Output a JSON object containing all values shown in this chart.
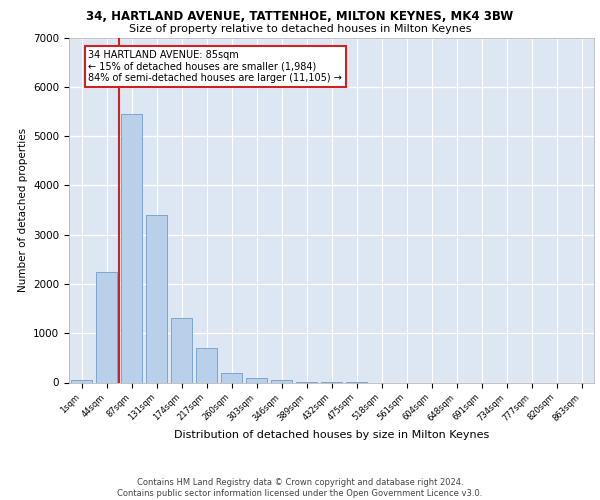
{
  "title_line1": "34, HARTLAND AVENUE, TATTENHOE, MILTON KEYNES, MK4 3BW",
  "title_line2": "Size of property relative to detached houses in Milton Keynes",
  "xlabel": "Distribution of detached houses by size in Milton Keynes",
  "ylabel": "Number of detached properties",
  "footer_line1": "Contains HM Land Registry data © Crown copyright and database right 2024.",
  "footer_line2": "Contains public sector information licensed under the Open Government Licence v3.0.",
  "annotation_line1": "34 HARTLAND AVENUE: 85sqm",
  "annotation_line2": "← 15% of detached houses are smaller (1,984)",
  "annotation_line3": "84% of semi-detached houses are larger (11,105) →",
  "bar_labels": [
    "1sqm",
    "44sqm",
    "87sqm",
    "131sqm",
    "174sqm",
    "217sqm",
    "260sqm",
    "303sqm",
    "346sqm",
    "389sqm",
    "432sqm",
    "475sqm",
    "518sqm",
    "561sqm",
    "604sqm",
    "648sqm",
    "691sqm",
    "734sqm",
    "777sqm",
    "820sqm",
    "863sqm"
  ],
  "bar_values": [
    60,
    2250,
    5450,
    3400,
    1300,
    700,
    200,
    100,
    55,
    10,
    4,
    1,
    0,
    0,
    0,
    0,
    0,
    0,
    0,
    0,
    0
  ],
  "bar_color": "#b8d0ea",
  "bar_edge_color": "#6090c0",
  "highlight_color": "#cc2222",
  "red_line_bar_index": 1,
  "ylim_min": 0,
  "ylim_max": 7000,
  "yticks": [
    0,
    1000,
    2000,
    3000,
    4000,
    5000,
    6000,
    7000
  ],
  "plot_bg_color": "#dde6f3",
  "grid_color": "#ffffff",
  "fig_bg_color": "#ffffff",
  "title1_fontsize": 8.5,
  "title2_fontsize": 8.0,
  "ylabel_fontsize": 7.5,
  "xlabel_fontsize": 8.0,
  "ytick_fontsize": 7.5,
  "xtick_fontsize": 6.0,
  "annotation_fontsize": 7.0,
  "footer_fontsize": 6.0
}
